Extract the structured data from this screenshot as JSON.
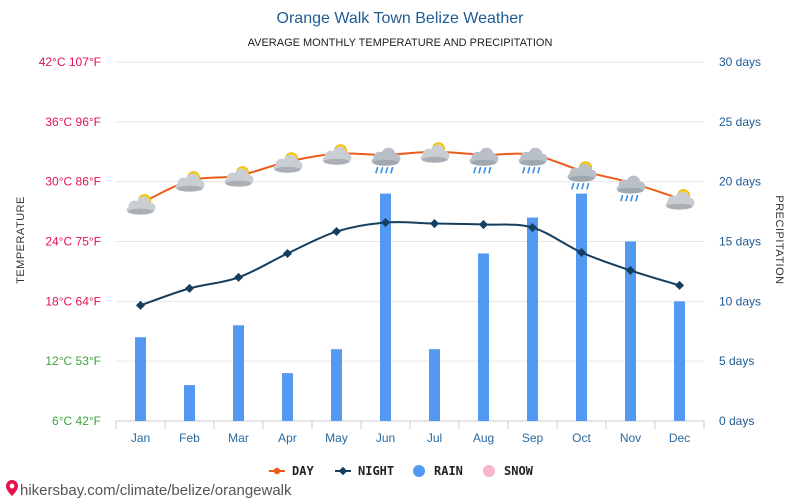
{
  "chart_data": {
    "type": "bar+line",
    "title": "Orange Walk Town Belize Weather",
    "subtitle": "AVERAGE MONTHLY TEMPERATURE AND PRECIPITATION",
    "categories": [
      "Jan",
      "Feb",
      "Mar",
      "Apr",
      "May",
      "Jun",
      "Jul",
      "Aug",
      "Sep",
      "Oct",
      "Nov",
      "Dec"
    ],
    "series": [
      {
        "name": "DAY",
        "kind": "line",
        "axis": "left",
        "color": "#ec5a1c",
        "values": [
          27.8,
          30.1,
          30.6,
          32.0,
          32.8,
          32.7,
          33.0,
          32.7,
          32.7,
          31.1,
          29.9,
          28.3
        ]
      },
      {
        "name": "NIGHT",
        "kind": "line",
        "axis": "left",
        "color": "#163e5f",
        "values": [
          17.6,
          19.3,
          20.4,
          22.8,
          25.0,
          25.9,
          25.8,
          25.7,
          25.4,
          22.9,
          21.1,
          19.6
        ]
      },
      {
        "name": "RAIN",
        "kind": "bar",
        "axis": "right",
        "color": "#5399f2",
        "values": [
          7,
          3,
          8,
          4,
          6,
          19,
          6,
          14,
          17,
          19,
          15,
          10
        ]
      },
      {
        "name": "SNOW",
        "kind": "bar",
        "axis": "right",
        "color": "#f8b6c8",
        "values": [
          0,
          0,
          0,
          0,
          0,
          0,
          0,
          0,
          0,
          0,
          0,
          0
        ]
      }
    ],
    "left_axis": {
      "title": "TEMPERATURE",
      "range": [
        6,
        42
      ],
      "ticks": [
        {
          "value": 42,
          "label": "42°C 107°F",
          "color": "#e5114f"
        },
        {
          "value": 36,
          "label": "36°C 96°F",
          "color": "#e5114f"
        },
        {
          "value": 30,
          "label": "30°C 86°F",
          "color": "#e5114f"
        },
        {
          "value": 24,
          "label": "24°C 75°F",
          "color": "#e5114f"
        },
        {
          "value": 18,
          "label": "18°C 64°F",
          "color": "#e5114f"
        },
        {
          "value": 12,
          "label": "12°C 53°F",
          "color": "#3aa33a"
        },
        {
          "value": 6,
          "label": "6°C 42°F",
          "color": "#3aa33a"
        }
      ]
    },
    "right_axis": {
      "title": "PRECIPITATION",
      "range": [
        0,
        30
      ],
      "ticks": [
        {
          "value": 30,
          "label": "30 days"
        },
        {
          "value": 25,
          "label": "25 days"
        },
        {
          "value": 20,
          "label": "20 days"
        },
        {
          "value": 15,
          "label": "15 days"
        },
        {
          "value": 10,
          "label": "10 days"
        },
        {
          "value": 5,
          "label": "5 days"
        },
        {
          "value": 0,
          "label": "0 days"
        }
      ]
    },
    "weather_icons": [
      "sun-cloud",
      "sun-cloud",
      "sun-cloud",
      "sun-cloud",
      "sun-cloud",
      "rain-cloud",
      "sun-cloud",
      "rain-cloud",
      "rain-cloud",
      "sun-rain-cloud",
      "rain-cloud",
      "sun-cloud"
    ],
    "legend": [
      {
        "label": "DAY",
        "color": "#ec5a1c",
        "kind": "line"
      },
      {
        "label": "NIGHT",
        "color": "#163e5f",
        "kind": "line"
      },
      {
        "label": "RAIN",
        "color": "#5399f2",
        "kind": "dot"
      },
      {
        "label": "SNOW",
        "color": "#f8b6c8",
        "kind": "dot"
      }
    ],
    "grid": true,
    "legend_position": "bottom"
  },
  "source": {
    "text": "hikersbay.com/climate/belize/orangewalk",
    "icon": "map-pin-icon",
    "color": "#e5114f"
  }
}
